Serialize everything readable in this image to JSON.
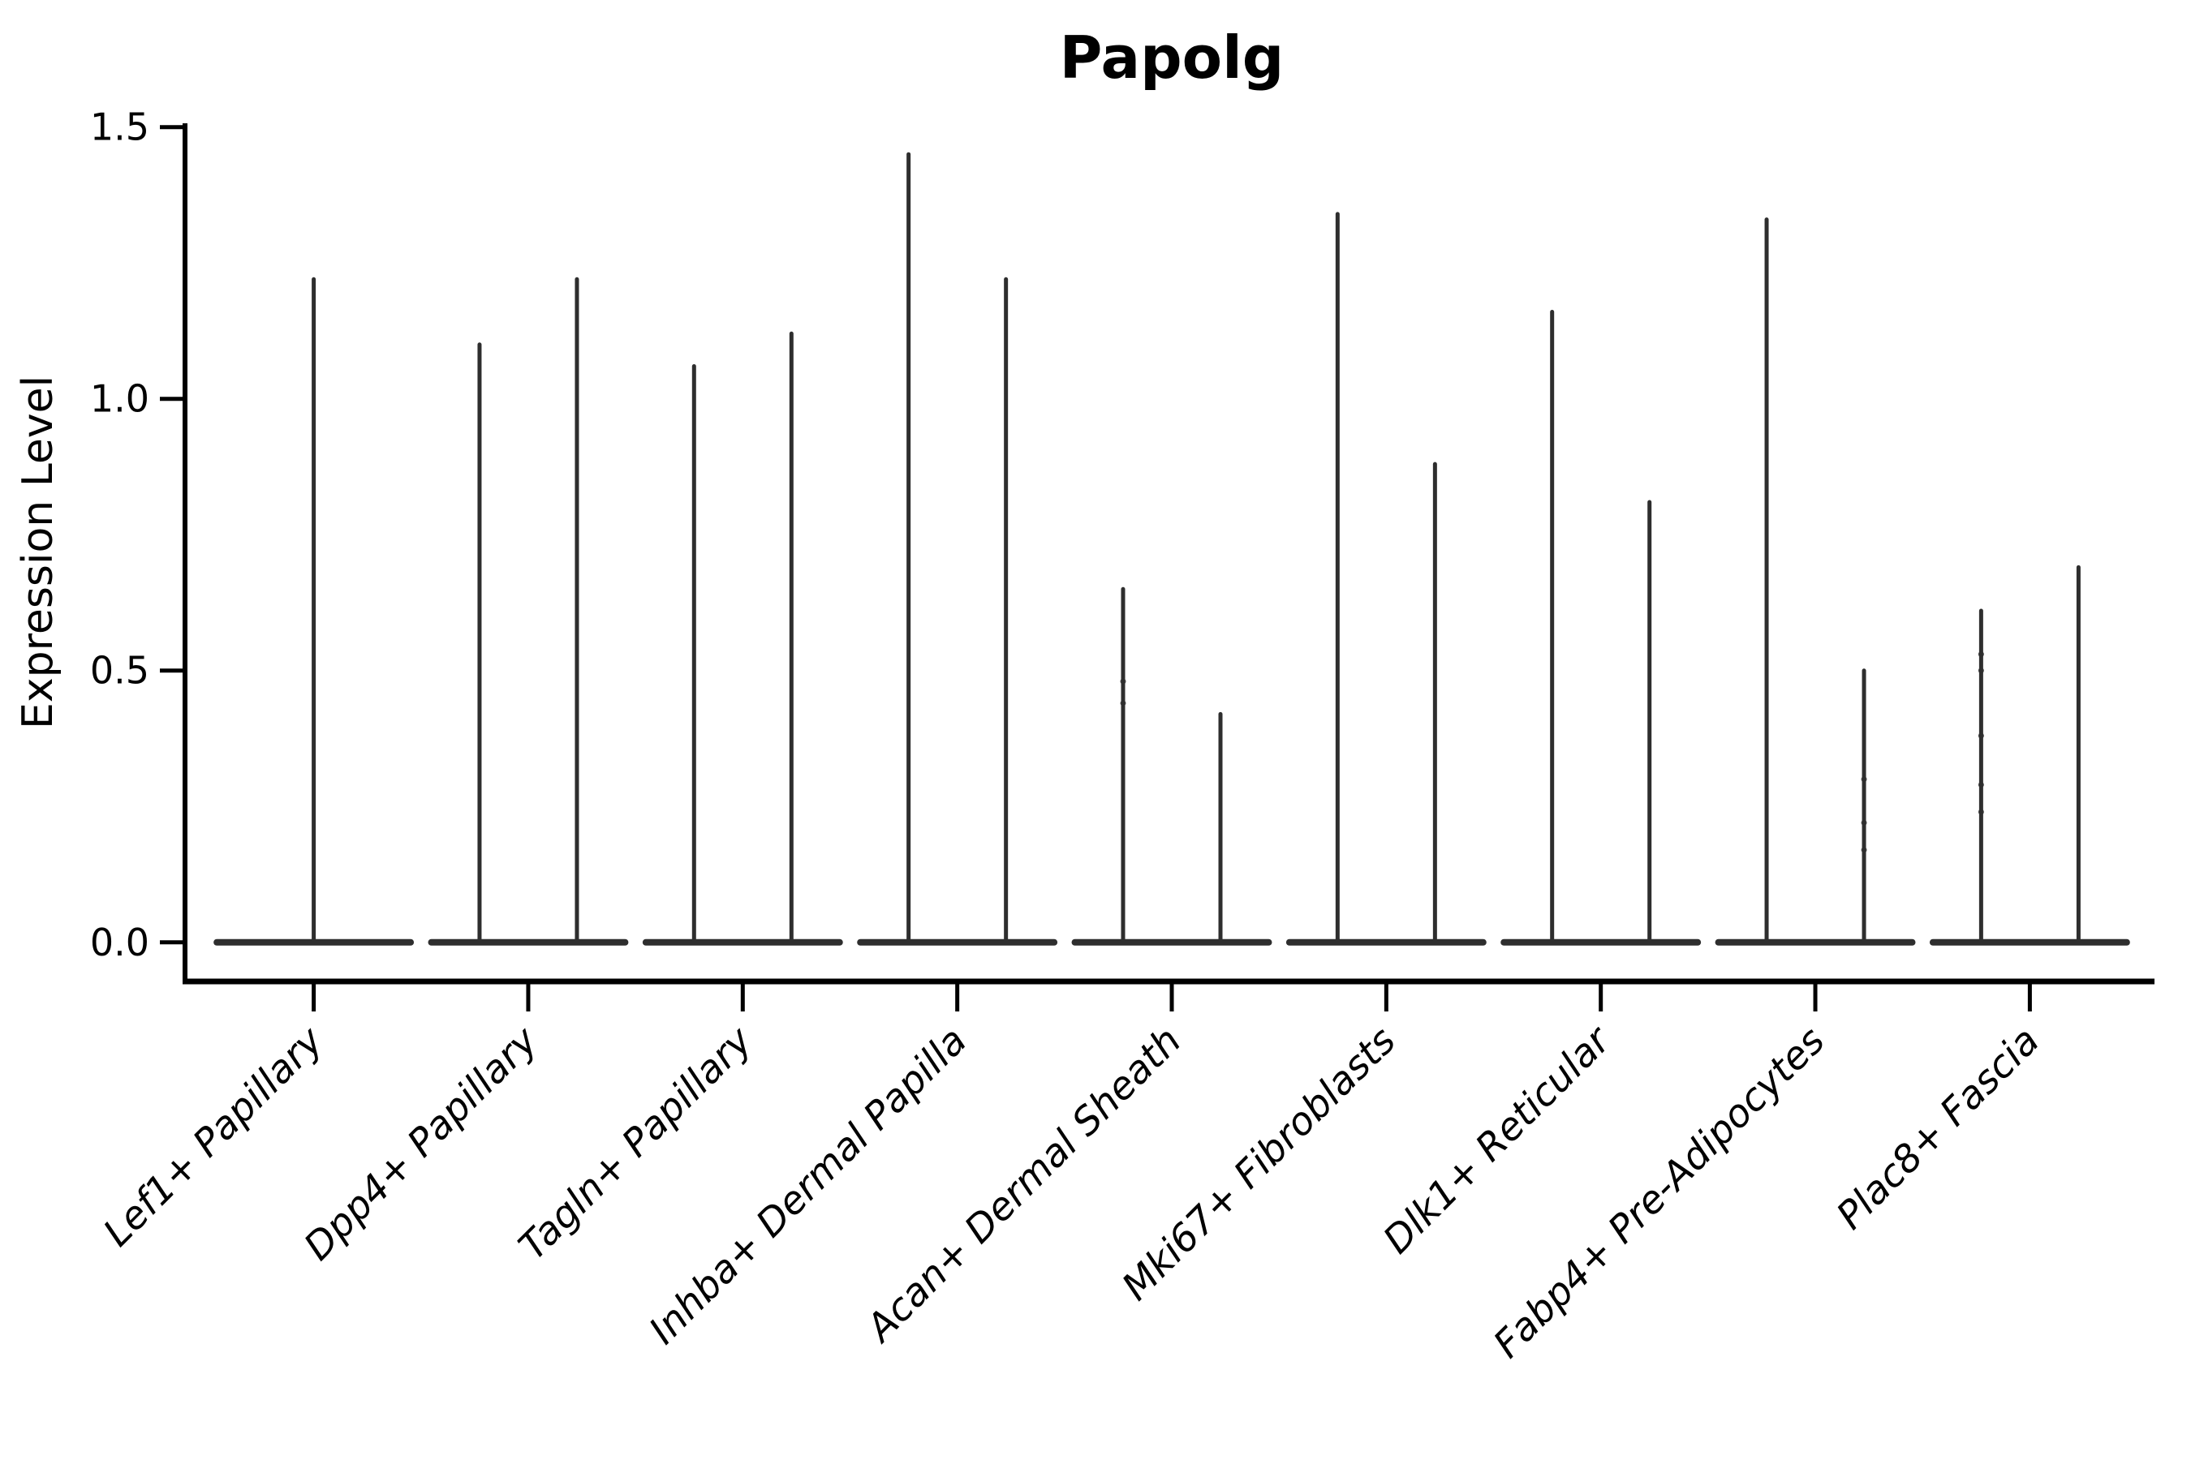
{
  "figure": {
    "background": "#ffffff"
  },
  "chart_data": {
    "type": "violin",
    "title": "Papolg",
    "xlabel": "",
    "ylabel": "Expression Level",
    "ylim": [
      -0.072,
      1.507
    ],
    "ytick_values": [
      0.0,
      0.5,
      1.0,
      1.5
    ],
    "ytick_labels": [
      "0.0",
      "0.5",
      "1.0",
      "1.5"
    ],
    "grid": false,
    "legend": null,
    "ink_color": "#2e2e2e",
    "axis_color": "#000000",
    "categories": [
      "Lef1+ Papillary",
      "Dpp4+ Papillary",
      "Tagln+ Papillary",
      "Inhba+ Dermal Papilla",
      "Acan+ Dermal Sheath",
      "Mki67+ Fibroblasts",
      "Dlk1+ Reticular",
      "Fabp4+ Pre-Adipocytes",
      "Plac8+ Fascia"
    ],
    "series": [
      {
        "category": "Lef1+ Papillary",
        "violins": [
          {
            "offset": 0.0,
            "max": 1.22,
            "dots": []
          }
        ]
      },
      {
        "category": "Dpp4+ Papillary",
        "violins": [
          {
            "offset": -0.227,
            "max": 1.1,
            "dots": []
          },
          {
            "offset": 0.227,
            "max": 1.22,
            "dots": []
          }
        ]
      },
      {
        "category": "Tagln+ Papillary",
        "violins": [
          {
            "offset": -0.227,
            "max": 1.06,
            "dots": []
          },
          {
            "offset": 0.227,
            "max": 1.12,
            "dots": []
          }
        ]
      },
      {
        "category": "Inhba+ Dermal Papilla",
        "violins": [
          {
            "offset": -0.227,
            "max": 1.45,
            "dots": []
          },
          {
            "offset": 0.227,
            "max": 1.22,
            "dots": []
          }
        ]
      },
      {
        "category": "Acan+ Dermal Sheath",
        "violins": [
          {
            "offset": -0.227,
            "max": 0.65,
            "dots": [
              0.48,
              0.44
            ]
          },
          {
            "offset": 0.227,
            "max": 0.42,
            "dots": []
          }
        ]
      },
      {
        "category": "Mki67+ Fibroblasts",
        "violins": [
          {
            "offset": -0.227,
            "max": 1.34,
            "dots": []
          },
          {
            "offset": 0.227,
            "max": 0.88,
            "dots": []
          }
        ]
      },
      {
        "category": "Dlk1+ Reticular",
        "violins": [
          {
            "offset": -0.227,
            "max": 1.16,
            "dots": []
          },
          {
            "offset": 0.227,
            "max": 0.81,
            "dots": []
          }
        ]
      },
      {
        "category": "Fabp4+ Pre-Adipocytes",
        "violins": [
          {
            "offset": -0.227,
            "max": 1.33,
            "dots": []
          },
          {
            "offset": 0.227,
            "max": 0.5,
            "dots": [
              0.3,
              0.22,
              0.17
            ]
          }
        ]
      },
      {
        "category": "Plac8+ Fascia",
        "violins": [
          {
            "offset": -0.227,
            "max": 0.61,
            "dots": [
              0.53,
              0.5,
              0.38,
              0.29,
              0.24
            ]
          },
          {
            "offset": 0.227,
            "max": 0.69,
            "dots": []
          }
        ]
      }
    ],
    "violin_base_halfwidth": 0.467,
    "layout_hints": {
      "x_tick_rotation_deg": 45,
      "spines": [
        "left",
        "bottom"
      ],
      "legend_position": "none"
    }
  }
}
